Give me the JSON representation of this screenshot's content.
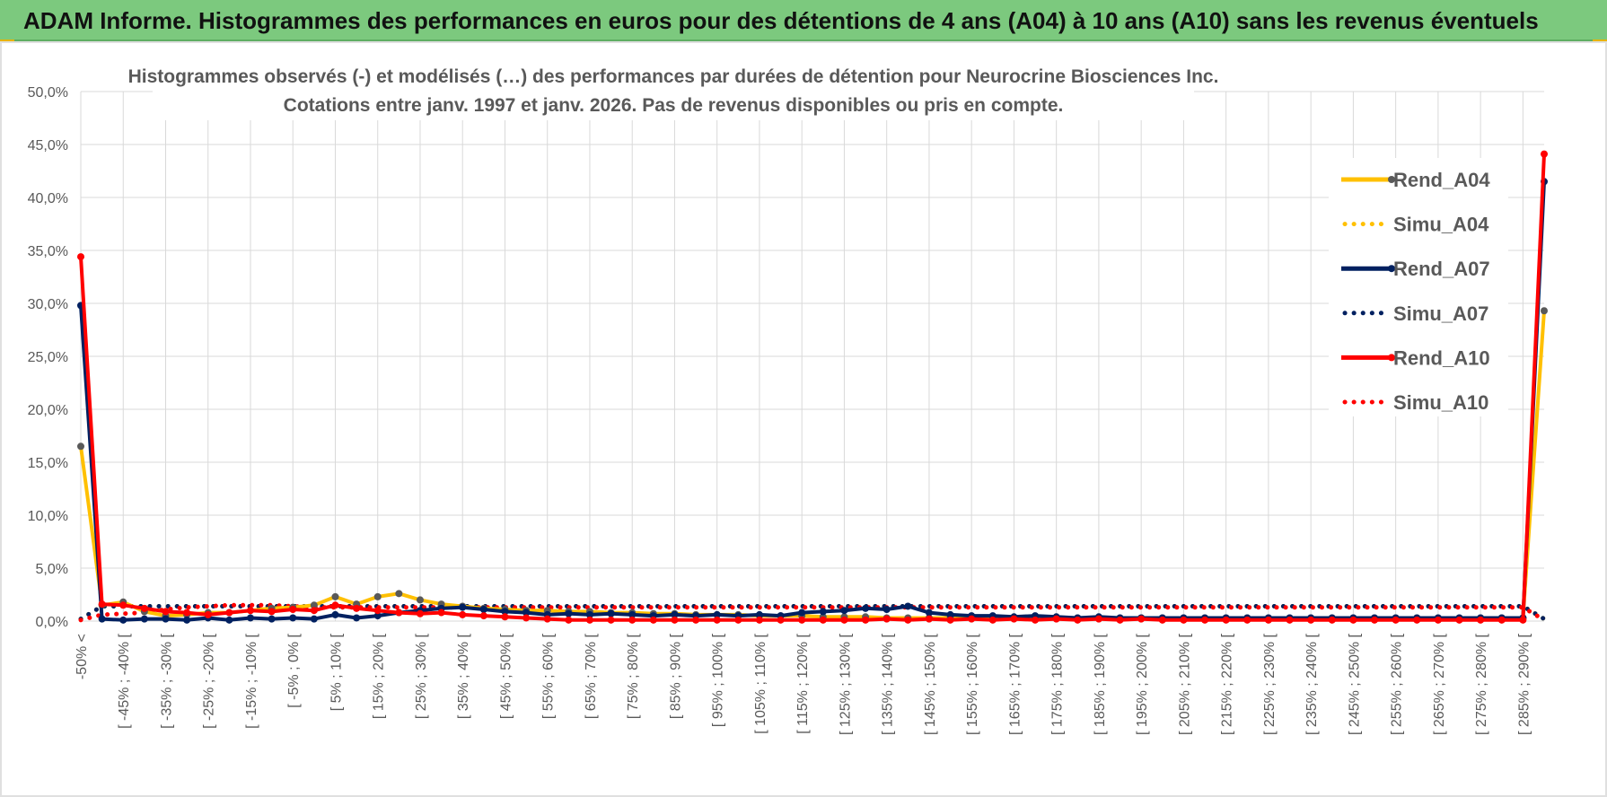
{
  "header": {
    "title": "ADAM Informe. Histogrammes des performances en euros pour des détentions de 4 ans (A04) à 10 ans (A10) sans les revenus éventuels"
  },
  "chart_data": {
    "type": "line",
    "title_lines": [
      "Histogrammes observés (-) et modélisés (…) des performances par durées de détention pour Neurocrine Biosciences Inc.",
      "Cotations entre janv. 1997 et janv. 2026. Pas de revenus disponibles ou pris en compte."
    ],
    "xlabel": "",
    "ylabel": "",
    "ylim": [
      0,
      50
    ],
    "y_ticks": [
      "0,0%",
      "5,0%",
      "10,0%",
      "15,0%",
      "20,0%",
      "25,0%",
      "30,0%",
      "35,0%",
      "40,0%",
      "45,0%",
      "50,0%"
    ],
    "grid": true,
    "legend_position": "right",
    "x_count": 70,
    "x_tick_labels": [
      {
        "i": 0,
        "label": "-50% <"
      },
      {
        "i": 2,
        "label": "[ -45% ; -40% ["
      },
      {
        "i": 4,
        "label": "[ -35% ; -30% ["
      },
      {
        "i": 6,
        "label": "[ -25% ; -20% ["
      },
      {
        "i": 8,
        "label": "[ -15% ; -10% ["
      },
      {
        "i": 10,
        "label": "[ -5% ; 0% ["
      },
      {
        "i": 12,
        "label": "[ 5% ; 10% ["
      },
      {
        "i": 14,
        "label": "[ 15% ; 20% ["
      },
      {
        "i": 16,
        "label": "[ 25% ; 30% ["
      },
      {
        "i": 18,
        "label": "[ 35% ; 40% ["
      },
      {
        "i": 20,
        "label": "[ 45% ; 50% ["
      },
      {
        "i": 22,
        "label": "[ 55% ; 60% ["
      },
      {
        "i": 24,
        "label": "[ 65% ; 70% ["
      },
      {
        "i": 26,
        "label": "[ 75% ; 80% ["
      },
      {
        "i": 28,
        "label": "[ 85% ; 90% ["
      },
      {
        "i": 30,
        "label": "[ 95% ; 100% ["
      },
      {
        "i": 32,
        "label": "[ 105% ; 110% ["
      },
      {
        "i": 34,
        "label": "[ 115% ; 120% ["
      },
      {
        "i": 36,
        "label": "[ 125% ; 130% ["
      },
      {
        "i": 38,
        "label": "[ 135% ; 140% ["
      },
      {
        "i": 40,
        "label": "[ 145% ; 150% ["
      },
      {
        "i": 42,
        "label": "[ 155% ; 160% ["
      },
      {
        "i": 44,
        "label": "[ 165% ; 170% ["
      },
      {
        "i": 46,
        "label": "[ 175% ; 180% ["
      },
      {
        "i": 48,
        "label": "[ 185% ; 190% ["
      },
      {
        "i": 50,
        "label": "[ 195% ; 200% ["
      },
      {
        "i": 52,
        "label": "[ 205% ; 210% ["
      },
      {
        "i": 54,
        "label": "[ 215% ; 220% ["
      },
      {
        "i": 56,
        "label": "[ 225% ; 230% ["
      },
      {
        "i": 58,
        "label": "[ 235% ; 240% ["
      },
      {
        "i": 60,
        "label": "[ 245% ; 250% ["
      },
      {
        "i": 62,
        "label": "[ 255% ; 260% ["
      },
      {
        "i": 64,
        "label": "[ 265% ; 270% ["
      },
      {
        "i": 66,
        "label": "[ 275% ; 280% ["
      },
      {
        "i": 68,
        "label": "[ 285% ; 290% ["
      }
    ],
    "series": [
      {
        "name": "Rend_A04",
        "color": "#ffc000",
        "style": "solid",
        "values": [
          16.5,
          1.5,
          1.8,
          0.9,
          0.5,
          0.6,
          0.8,
          0.8,
          1.0,
          1.2,
          1.3,
          1.5,
          2.3,
          1.6,
          2.3,
          2.6,
          2.0,
          1.6,
          1.4,
          1.2,
          1.1,
          1.0,
          1.0,
          0.9,
          0.9,
          0.8,
          0.8,
          0.7,
          0.7,
          0.6,
          0.6,
          0.6,
          0.5,
          0.5,
          0.5,
          0.4,
          0.4,
          0.4,
          0.3,
          0.3,
          0.3,
          0.3,
          0.3,
          0.3,
          0.3,
          0.3,
          0.3,
          0.3,
          0.3,
          0.3,
          0.3,
          0.3,
          0.3,
          0.3,
          0.3,
          0.3,
          0.3,
          0.3,
          0.3,
          0.3,
          0.3,
          0.3,
          0.3,
          0.3,
          0.3,
          0.3,
          0.3,
          0.3,
          0.3,
          29.3
        ]
      },
      {
        "name": "Simu_A04",
        "color": "#ffc000",
        "style": "dotted",
        "values": [
          0.2,
          1.4,
          1.4,
          1.4,
          1.4,
          1.4,
          1.4,
          1.4,
          1.4,
          1.4,
          1.4,
          1.4,
          1.4,
          1.4,
          1.4,
          1.4,
          1.4,
          1.4,
          1.4,
          1.4,
          1.4,
          1.4,
          1.4,
          1.4,
          1.4,
          1.4,
          1.4,
          1.4,
          1.4,
          1.4,
          1.4,
          1.4,
          1.4,
          1.4,
          1.4,
          1.4,
          1.4,
          1.4,
          1.4,
          1.4,
          1.4,
          1.4,
          1.4,
          1.4,
          1.4,
          1.4,
          1.4,
          1.4,
          1.4,
          1.4,
          1.4,
          1.4,
          1.4,
          1.4,
          1.4,
          1.4,
          1.4,
          1.4,
          1.4,
          1.4,
          1.4,
          1.4,
          1.4,
          1.4,
          1.4,
          1.4,
          1.4,
          1.4,
          1.4,
          0.2
        ]
      },
      {
        "name": "Rend_A07",
        "color": "#002060",
        "style": "solid",
        "values": [
          29.8,
          0.2,
          0.1,
          0.2,
          0.2,
          0.1,
          0.3,
          0.1,
          0.3,
          0.2,
          0.3,
          0.2,
          0.6,
          0.3,
          0.5,
          0.8,
          1.0,
          1.2,
          1.3,
          1.1,
          0.9,
          0.8,
          0.6,
          0.7,
          0.6,
          0.7,
          0.6,
          0.5,
          0.6,
          0.5,
          0.6,
          0.5,
          0.6,
          0.5,
          0.8,
          0.9,
          1.0,
          1.2,
          1.1,
          1.4,
          0.8,
          0.6,
          0.5,
          0.5,
          0.4,
          0.5,
          0.4,
          0.3,
          0.4,
          0.3,
          0.3,
          0.3,
          0.3,
          0.3,
          0.3,
          0.3,
          0.3,
          0.3,
          0.3,
          0.3,
          0.3,
          0.3,
          0.3,
          0.3,
          0.3,
          0.3,
          0.3,
          0.3,
          0.3,
          41.5
        ]
      },
      {
        "name": "Simu_A07",
        "color": "#002060",
        "style": "dotted",
        "values": [
          0.2,
          1.4,
          1.4,
          1.4,
          1.4,
          1.4,
          1.4,
          1.4,
          1.4,
          1.4,
          1.4,
          1.4,
          1.4,
          1.4,
          1.4,
          1.4,
          1.4,
          1.4,
          1.4,
          1.4,
          1.4,
          1.4,
          1.4,
          1.4,
          1.4,
          1.4,
          1.4,
          1.4,
          1.4,
          1.4,
          1.4,
          1.4,
          1.4,
          1.4,
          1.4,
          1.4,
          1.4,
          1.4,
          1.4,
          1.4,
          1.4,
          1.4,
          1.4,
          1.4,
          1.4,
          1.4,
          1.4,
          1.4,
          1.4,
          1.4,
          1.4,
          1.4,
          1.4,
          1.4,
          1.4,
          1.4,
          1.4,
          1.4,
          1.4,
          1.4,
          1.4,
          1.4,
          1.4,
          1.4,
          1.4,
          1.4,
          1.4,
          1.4,
          1.4,
          0.2
        ]
      },
      {
        "name": "Rend_A10",
        "color": "#ff0000",
        "style": "solid",
        "values": [
          34.4,
          1.6,
          1.5,
          1.2,
          0.9,
          0.8,
          0.6,
          0.8,
          1.0,
          0.9,
          1.1,
          1.0,
          1.5,
          1.2,
          1.0,
          0.8,
          0.7,
          0.8,
          0.6,
          0.5,
          0.4,
          0.3,
          0.2,
          0.1,
          0.1,
          0.1,
          0.1,
          0.1,
          0.1,
          0.1,
          0.1,
          0.1,
          0.1,
          0.1,
          0.1,
          0.1,
          0.1,
          0.1,
          0.2,
          0.1,
          0.2,
          0.1,
          0.2,
          0.1,
          0.2,
          0.1,
          0.2,
          0.1,
          0.2,
          0.1,
          0.2,
          0.1,
          0.1,
          0.1,
          0.1,
          0.1,
          0.1,
          0.1,
          0.1,
          0.1,
          0.1,
          0.1,
          0.1,
          0.1,
          0.1,
          0.1,
          0.1,
          0.1,
          0.1,
          44.1
        ]
      },
      {
        "name": "Simu_A10",
        "color": "#ff0000",
        "style": "dotted",
        "values": [
          0.1,
          0.6,
          0.7,
          0.8,
          1.1,
          1.3,
          1.4,
          1.5,
          1.5,
          1.5,
          1.4,
          1.3,
          1.3,
          1.3,
          1.3,
          1.3,
          1.3,
          1.3,
          1.3,
          1.3,
          1.3,
          1.3,
          1.3,
          1.3,
          1.3,
          1.3,
          1.3,
          1.3,
          1.3,
          1.3,
          1.3,
          1.3,
          1.3,
          1.3,
          1.3,
          1.3,
          1.3,
          1.3,
          1.3,
          1.3,
          1.3,
          1.3,
          1.3,
          1.3,
          1.3,
          1.3,
          1.3,
          1.3,
          1.3,
          1.3,
          1.3,
          1.3,
          1.3,
          1.3,
          1.3,
          1.3,
          1.3,
          1.3,
          1.3,
          1.3,
          1.3,
          1.3,
          1.3,
          1.3,
          1.3,
          1.3,
          1.3,
          1.3,
          1.3,
          0.1
        ]
      }
    ]
  }
}
